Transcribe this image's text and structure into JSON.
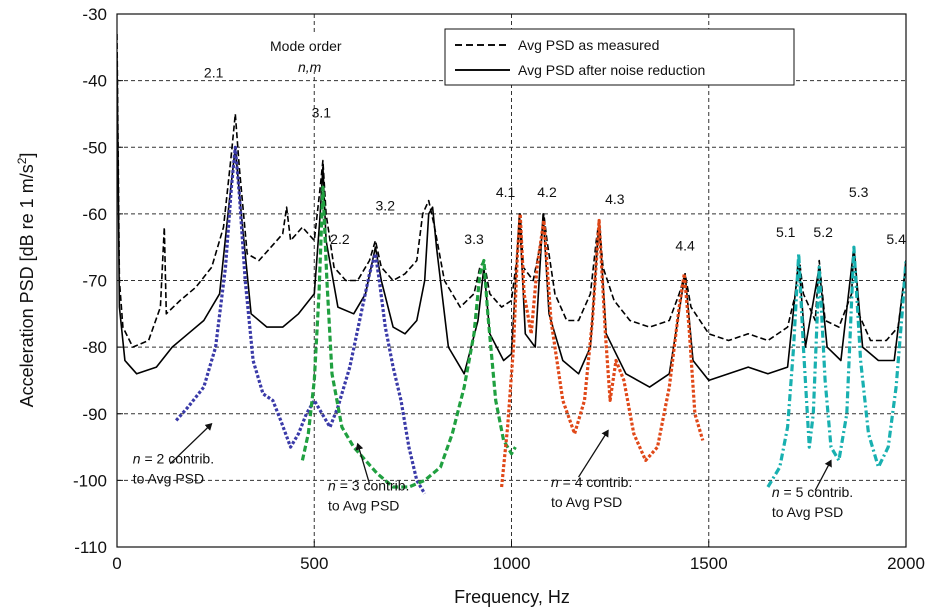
{
  "chart_data": {
    "type": "line",
    "title": "",
    "xlabel": "Frequency, Hz",
    "ylabel": "Acceleration PSD [dB re 1 m/s",
    "ylabel_sup": "2",
    "ylabel_end": "]",
    "xlim": [
      0,
      2000
    ],
    "ylim": [
      -110,
      -30
    ],
    "x_ticks": [
      0,
      500,
      1000,
      1500,
      2000
    ],
    "y_ticks": [
      -110,
      -100,
      -90,
      -80,
      -70,
      -60,
      -50,
      -40,
      -30
    ],
    "x_tick_labels": [
      "0",
      "500",
      "1000",
      "1500",
      "2000"
    ],
    "y_tick_labels": [
      "-110",
      "-100",
      "-90",
      "-80",
      "-70",
      "-60",
      "-50",
      "-40",
      "-30"
    ],
    "grid": "dashed horizontal and vertical gridlines",
    "legend_position": "top-right",
    "legend": [
      {
        "label": "Avg PSD as measured",
        "style": "dashed",
        "color": "#000000"
      },
      {
        "label": "Avg PSD after noise reduction",
        "style": "solid",
        "color": "#000000"
      }
    ],
    "mode_order_label": "Mode order",
    "mode_order_sub": "n,m",
    "series": [
      {
        "name": "Avg PSD as measured",
        "color": "#000000",
        "style": "dashed",
        "points": [
          [
            0,
            -33
          ],
          [
            6,
            -70
          ],
          [
            15,
            -77
          ],
          [
            40,
            -80
          ],
          [
            80,
            -79
          ],
          [
            110,
            -74
          ],
          [
            120,
            -62
          ],
          [
            125,
            -75
          ],
          [
            160,
            -73
          ],
          [
            200,
            -71
          ],
          [
            240,
            -68
          ],
          [
            270,
            -62
          ],
          [
            290,
            -51
          ],
          [
            300,
            -45
          ],
          [
            310,
            -53
          ],
          [
            330,
            -66
          ],
          [
            360,
            -67
          ],
          [
            390,
            -65
          ],
          [
            420,
            -63
          ],
          [
            430,
            -59
          ],
          [
            440,
            -64
          ],
          [
            470,
            -62
          ],
          [
            500,
            -64
          ],
          [
            515,
            -56
          ],
          [
            522,
            -52
          ],
          [
            530,
            -60
          ],
          [
            550,
            -68
          ],
          [
            580,
            -70
          ],
          [
            610,
            -70
          ],
          [
            640,
            -67
          ],
          [
            655,
            -64
          ],
          [
            670,
            -68
          ],
          [
            700,
            -70
          ],
          [
            730,
            -69
          ],
          [
            760,
            -67
          ],
          [
            775,
            -60
          ],
          [
            790,
            -58
          ],
          [
            805,
            -62
          ],
          [
            830,
            -70
          ],
          [
            870,
            -74
          ],
          [
            905,
            -72
          ],
          [
            920,
            -68
          ],
          [
            930,
            -67
          ],
          [
            945,
            -72
          ],
          [
            975,
            -74
          ],
          [
            1000,
            -73
          ],
          [
            1015,
            -66
          ],
          [
            1022,
            -60
          ],
          [
            1030,
            -68
          ],
          [
            1055,
            -70
          ],
          [
            1075,
            -64
          ],
          [
            1082,
            -60
          ],
          [
            1090,
            -64
          ],
          [
            1110,
            -72
          ],
          [
            1140,
            -76
          ],
          [
            1170,
            -76
          ],
          [
            1200,
            -72
          ],
          [
            1215,
            -64
          ],
          [
            1222,
            -61
          ],
          [
            1232,
            -68
          ],
          [
            1260,
            -73
          ],
          [
            1300,
            -76
          ],
          [
            1350,
            -77
          ],
          [
            1400,
            -76
          ],
          [
            1425,
            -72
          ],
          [
            1440,
            -69
          ],
          [
            1455,
            -74
          ],
          [
            1500,
            -78
          ],
          [
            1550,
            -79
          ],
          [
            1600,
            -78
          ],
          [
            1650,
            -79
          ],
          [
            1700,
            -77
          ],
          [
            1720,
            -72
          ],
          [
            1728,
            -66
          ],
          [
            1740,
            -72
          ],
          [
            1770,
            -76
          ],
          [
            1780,
            -67
          ],
          [
            1795,
            -76
          ],
          [
            1830,
            -77
          ],
          [
            1862,
            -72
          ],
          [
            1868,
            -65
          ],
          [
            1880,
            -75
          ],
          [
            1910,
            -79
          ],
          [
            1950,
            -79
          ],
          [
            1980,
            -77
          ],
          [
            1995,
            -70
          ],
          [
            2000,
            -67
          ]
        ]
      },
      {
        "name": "Avg PSD after noise reduction",
        "color": "#000000",
        "style": "solid",
        "points": [
          [
            0,
            -36
          ],
          [
            6,
            -74
          ],
          [
            20,
            -82
          ],
          [
            50,
            -84
          ],
          [
            100,
            -83
          ],
          [
            140,
            -80
          ],
          [
            180,
            -78
          ],
          [
            220,
            -76
          ],
          [
            260,
            -72
          ],
          [
            285,
            -58
          ],
          [
            300,
            -50
          ],
          [
            315,
            -60
          ],
          [
            340,
            -75
          ],
          [
            380,
            -77
          ],
          [
            420,
            -77
          ],
          [
            460,
            -75
          ],
          [
            500,
            -72
          ],
          [
            515,
            -60
          ],
          [
            522,
            -53
          ],
          [
            530,
            -64
          ],
          [
            560,
            -74
          ],
          [
            600,
            -75
          ],
          [
            630,
            -72
          ],
          [
            655,
            -65
          ],
          [
            670,
            -70
          ],
          [
            700,
            -77
          ],
          [
            730,
            -78
          ],
          [
            760,
            -76
          ],
          [
            780,
            -70
          ],
          [
            790,
            -60
          ],
          [
            800,
            -59
          ],
          [
            810,
            -65
          ],
          [
            840,
            -80
          ],
          [
            880,
            -84
          ],
          [
            915,
            -76
          ],
          [
            930,
            -68
          ],
          [
            945,
            -78
          ],
          [
            980,
            -82
          ],
          [
            1000,
            -81
          ],
          [
            1020,
            -60
          ],
          [
            1035,
            -78
          ],
          [
            1060,
            -80
          ],
          [
            1080,
            -60
          ],
          [
            1095,
            -75
          ],
          [
            1130,
            -82
          ],
          [
            1170,
            -84
          ],
          [
            1200,
            -80
          ],
          [
            1222,
            -61
          ],
          [
            1240,
            -78
          ],
          [
            1290,
            -84
          ],
          [
            1350,
            -86
          ],
          [
            1400,
            -84
          ],
          [
            1440,
            -69
          ],
          [
            1460,
            -82
          ],
          [
            1500,
            -85
          ],
          [
            1550,
            -84
          ],
          [
            1600,
            -83
          ],
          [
            1650,
            -84
          ],
          [
            1700,
            -83
          ],
          [
            1728,
            -67
          ],
          [
            1745,
            -80
          ],
          [
            1780,
            -68
          ],
          [
            1800,
            -80
          ],
          [
            1835,
            -82
          ],
          [
            1868,
            -65
          ],
          [
            1890,
            -80
          ],
          [
            1930,
            -82
          ],
          [
            1970,
            -82
          ],
          [
            1995,
            -70
          ],
          [
            2000,
            -67
          ]
        ]
      },
      {
        "name": "n = 2 contrib. to Avg PSD",
        "color": "#3a3aa8",
        "style": "dotted",
        "points": [
          [
            150,
            -91
          ],
          [
            180,
            -89
          ],
          [
            220,
            -86
          ],
          [
            250,
            -80
          ],
          [
            275,
            -68
          ],
          [
            290,
            -56
          ],
          [
            300,
            -50
          ],
          [
            310,
            -57
          ],
          [
            325,
            -70
          ],
          [
            345,
            -82
          ],
          [
            370,
            -87
          ],
          [
            395,
            -88
          ],
          [
            415,
            -91
          ],
          [
            440,
            -95
          ],
          [
            460,
            -93
          ],
          [
            480,
            -90
          ],
          [
            500,
            -88
          ],
          [
            520,
            -90
          ],
          [
            540,
            -92
          ],
          [
            560,
            -89
          ],
          [
            590,
            -83
          ],
          [
            615,
            -76
          ],
          [
            640,
            -69
          ],
          [
            655,
            -66
          ],
          [
            665,
            -70
          ],
          [
            680,
            -77
          ],
          [
            700,
            -83
          ],
          [
            720,
            -88
          ],
          [
            740,
            -95
          ],
          [
            760,
            -100
          ],
          [
            780,
            -102
          ]
        ]
      },
      {
        "name": "n = 3 contrib. to Avg PSD",
        "color": "#20a040",
        "style": "dashed",
        "points": [
          [
            470,
            -97
          ],
          [
            485,
            -93
          ],
          [
            500,
            -85
          ],
          [
            512,
            -72
          ],
          [
            522,
            -56
          ],
          [
            532,
            -70
          ],
          [
            545,
            -84
          ],
          [
            570,
            -92
          ],
          [
            600,
            -95
          ],
          [
            630,
            -97
          ],
          [
            660,
            -99
          ],
          [
            700,
            -101
          ],
          [
            740,
            -101
          ],
          [
            780,
            -100
          ],
          [
            820,
            -98
          ],
          [
            850,
            -93
          ],
          [
            880,
            -86
          ],
          [
            905,
            -78
          ],
          [
            920,
            -69
          ],
          [
            930,
            -67
          ],
          [
            940,
            -75
          ],
          [
            960,
            -88
          ],
          [
            980,
            -94
          ],
          [
            1000,
            -96
          ],
          [
            1010,
            -95
          ]
        ]
      },
      {
        "name": "n = 4 contrib. to Avg PSD",
        "color": "#e04818",
        "style": "dotted",
        "points": [
          [
            975,
            -101
          ],
          [
            990,
            -92
          ],
          [
            1005,
            -80
          ],
          [
            1015,
            -66
          ],
          [
            1022,
            -60
          ],
          [
            1032,
            -72
          ],
          [
            1050,
            -78
          ],
          [
            1065,
            -68
          ],
          [
            1082,
            -61
          ],
          [
            1100,
            -76
          ],
          [
            1130,
            -88
          ],
          [
            1160,
            -93
          ],
          [
            1185,
            -88
          ],
          [
            1205,
            -76
          ],
          [
            1222,
            -61
          ],
          [
            1238,
            -78
          ],
          [
            1250,
            -88
          ],
          [
            1265,
            -82
          ],
          [
            1285,
            -85
          ],
          [
            1310,
            -93
          ],
          [
            1340,
            -97
          ],
          [
            1370,
            -95
          ],
          [
            1400,
            -86
          ],
          [
            1425,
            -74
          ],
          [
            1438,
            -69
          ],
          [
            1450,
            -77
          ],
          [
            1465,
            -90
          ],
          [
            1485,
            -94
          ]
        ]
      },
      {
        "name": "n = 5 contrib. to Avg PSD",
        "color": "#18b0b0",
        "style": "dash-dot",
        "points": [
          [
            1650,
            -101
          ],
          [
            1680,
            -98
          ],
          [
            1700,
            -92
          ],
          [
            1715,
            -80
          ],
          [
            1728,
            -66
          ],
          [
            1740,
            -80
          ],
          [
            1755,
            -95
          ],
          [
            1765,
            -90
          ],
          [
            1780,
            -68
          ],
          [
            1795,
            -85
          ],
          [
            1810,
            -95
          ],
          [
            1830,
            -97
          ],
          [
            1850,
            -90
          ],
          [
            1868,
            -65
          ],
          [
            1885,
            -82
          ],
          [
            1905,
            -93
          ],
          [
            1930,
            -98
          ],
          [
            1955,
            -95
          ],
          [
            1975,
            -86
          ],
          [
            1990,
            -75
          ],
          [
            2000,
            -67
          ]
        ]
      }
    ],
    "peak_labels": [
      {
        "text": "2.1",
        "x": 245,
        "y": -39.5
      },
      {
        "text": "3.1",
        "x": 518,
        "y": -45.5
      },
      {
        "text": "3.2",
        "x": 680,
        "y": -59.5
      },
      {
        "text": "2.2",
        "x": 565,
        "y": -64.5
      },
      {
        "text": "3.3",
        "x": 905,
        "y": -64.5
      },
      {
        "text": "4.1",
        "x": 985,
        "y": -57.5
      },
      {
        "text": "4.2",
        "x": 1090,
        "y": -57.5
      },
      {
        "text": "4.3",
        "x": 1262,
        "y": -58.5
      },
      {
        "text": "4.4",
        "x": 1440,
        "y": -65.5
      },
      {
        "text": "5.1",
        "x": 1695,
        "y": -63.5
      },
      {
        "text": "5.2",
        "x": 1790,
        "y": -63.5
      },
      {
        "text": "5.3",
        "x": 1880,
        "y": -57.5
      },
      {
        "text": "5.4",
        "x": 1975,
        "y": -64.5
      }
    ],
    "contrib_labels": [
      {
        "n": "n",
        "rest": " = 2 contrib.",
        "line2": "to Avg PSD",
        "x": 40,
        "y": -97.5
      },
      {
        "n": "n",
        "rest": " = 3 contrib.",
        "line2": "to Avg PSD",
        "x": 535,
        "y": -101.5
      },
      {
        "n": "n",
        "rest": " = 4 contrib.",
        "line2": "to Avg PSD",
        "x": 1100,
        "y": -101
      },
      {
        "n": "n",
        "rest": " = 5 contrib.",
        "line2": "to Avg PSD",
        "x": 1660,
        "y": -102.5
      }
    ],
    "arrows": [
      {
        "from": [
          135,
          -97.5
        ],
        "to": [
          240,
          -91.5
        ]
      },
      {
        "from": [
          640,
          -100.5
        ],
        "to": [
          610,
          -94.5
        ]
      },
      {
        "from": [
          1170,
          -99.5
        ],
        "to": [
          1245,
          -92.5
        ]
      },
      {
        "from": [
          1770,
          -101.5
        ],
        "to": [
          1810,
          -97
        ]
      }
    ]
  }
}
